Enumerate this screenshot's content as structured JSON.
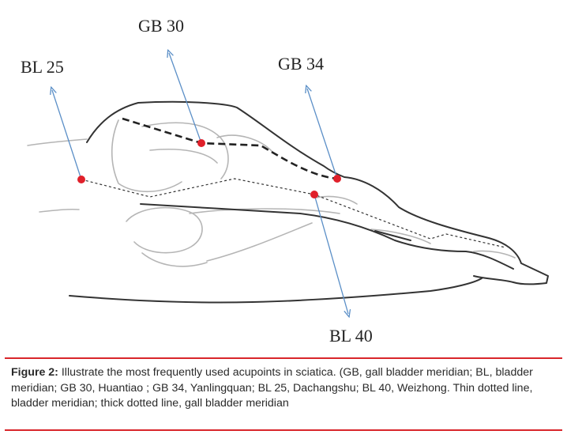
{
  "labels": {
    "gb30": "GB 30",
    "bl25": "BL 25",
    "gb34": "GB 34",
    "bl40": "BL 40"
  },
  "caption": {
    "figure_label": "Figure 2:",
    "text": " Illustrate the most frequently used acupoints in sciatica. (GB, gall bladder meridian; BL, bladder meridian; GB 30, Huantiao ; GB 34, Yanlingquan; BL 25, Dachangshu; BL 40, Weizhong. Thin dotted line, bladder meridian; thick dotted line, gall bladder meridian"
  },
  "colors": {
    "rule": "#d9262b",
    "acupoint": "#e0202a",
    "arrow": "#5b8fc7",
    "outline": "#333333",
    "bone": "#b5b5b5"
  }
}
